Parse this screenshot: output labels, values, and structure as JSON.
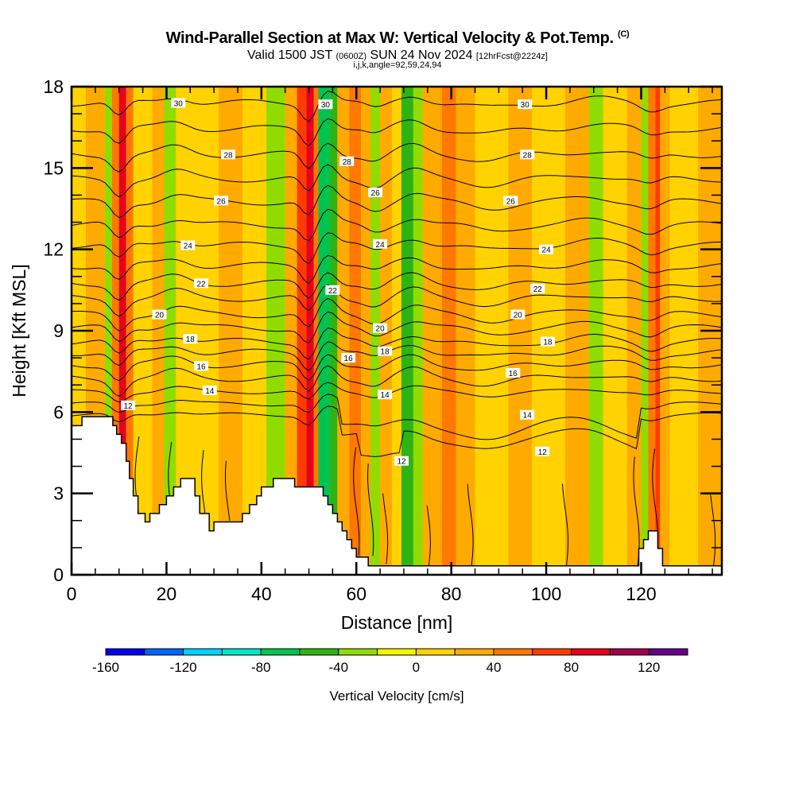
{
  "header": {
    "title": "Wind-Parallel Section at Max W: Vertical Velocity & Pot.Temp.",
    "title_mark": "(C)",
    "valid_prefix": "Valid 1500 JST",
    "valid_utc": "(0600Z)",
    "valid_date": "SUN 24 Nov 2024",
    "forecast": "[12hrFcst@2224z]",
    "indices": "i,j,k,angle=92,59,24,94"
  },
  "chart_data": {
    "type": "heatmap",
    "title": "Wind-Parallel Section at Max W: Vertical Velocity & Pot.Temp.",
    "xlabel": "Distance [nm]",
    "ylabel": "Height [Kft MSL]",
    "xlim": [
      0,
      137
    ],
    "ylim": [
      0,
      18
    ],
    "x_ticks": [
      0,
      20,
      40,
      60,
      80,
      100,
      120
    ],
    "x_tick_labels": [
      "0",
      "20",
      "40",
      "60",
      "80",
      "100",
      "120"
    ],
    "y_ticks": [
      0,
      3,
      6,
      9,
      12,
      15,
      18
    ],
    "y_tick_labels": [
      "0",
      "3",
      "6",
      "9",
      "12",
      "15",
      "18"
    ],
    "colorbar": {
      "label": "Vertical Velocity [cm/s]",
      "bounds": [
        -160,
        -140,
        -120,
        -100,
        -80,
        -60,
        -40,
        -20,
        0,
        20,
        40,
        60,
        80,
        100,
        120,
        140
      ],
      "tick_values": [
        -160,
        -120,
        -80,
        -40,
        0,
        40,
        80,
        120
      ],
      "tick_labels": [
        "-160",
        "-120",
        "-80",
        "-40",
        "0",
        "40",
        "80",
        "120"
      ],
      "colors": [
        "#0000f0",
        "#0064ff",
        "#00d2ff",
        "#00e6c3",
        "#00c350",
        "#2db414",
        "#91dc00",
        "#f5f500",
        "#ffd200",
        "#ffaa00",
        "#ff7800",
        "#ff3c00",
        "#e6001e",
        "#a0004b",
        "#640087"
      ]
    },
    "vertical_velocity_bands": [
      {
        "x": [
          0,
          3
        ],
        "w": 10
      },
      {
        "x": [
          3,
          7
        ],
        "w": 25
      },
      {
        "x": [
          7,
          8.5
        ],
        "w": -30
      },
      {
        "x": [
          8.5,
          10
        ],
        "w": 50
      },
      {
        "x": [
          10,
          11.5
        ],
        "w": 85
      },
      {
        "x": [
          11.5,
          13
        ],
        "w": 40
      },
      {
        "x": [
          13,
          17
        ],
        "w": 15
      },
      {
        "x": [
          17,
          19.5
        ],
        "w": 30
      },
      {
        "x": [
          19.5,
          22
        ],
        "w": -30
      },
      {
        "x": [
          22,
          26
        ],
        "w": 15
      },
      {
        "x": [
          26,
          31
        ],
        "w": 5
      },
      {
        "x": [
          31,
          36
        ],
        "w": 25
      },
      {
        "x": [
          36,
          41
        ],
        "w": 5
      },
      {
        "x": [
          41,
          45
        ],
        "w": -30
      },
      {
        "x": [
          45,
          47.5
        ],
        "w": 30
      },
      {
        "x": [
          47.5,
          49.5
        ],
        "w": 60
      },
      {
        "x": [
          49.5,
          51
        ],
        "w": 95
      },
      {
        "x": [
          51,
          52
        ],
        "w": 50
      },
      {
        "x": [
          52,
          54.5
        ],
        "w": -70
      },
      {
        "x": [
          54.5,
          56
        ],
        "w": -45
      },
      {
        "x": [
          56,
          58.5
        ],
        "w": 30
      },
      {
        "x": [
          58.5,
          61
        ],
        "w": 50
      },
      {
        "x": [
          61,
          63
        ],
        "w": 30
      },
      {
        "x": [
          63,
          65
        ],
        "w": -30
      },
      {
        "x": [
          65,
          67.5
        ],
        "w": 25
      },
      {
        "x": [
          67.5,
          69.5
        ],
        "w": 5
      },
      {
        "x": [
          69.5,
          72
        ],
        "w": -55
      },
      {
        "x": [
          72,
          74
        ],
        "w": -30
      },
      {
        "x": [
          74,
          78
        ],
        "w": 25
      },
      {
        "x": [
          78,
          81
        ],
        "w": 50
      },
      {
        "x": [
          81,
          85
        ],
        "w": 25
      },
      {
        "x": [
          85,
          92
        ],
        "w": 5
      },
      {
        "x": [
          92,
          97
        ],
        "w": 25
      },
      {
        "x": [
          97,
          104
        ],
        "w": 5
      },
      {
        "x": [
          104,
          109
        ],
        "w": 25
      },
      {
        "x": [
          109,
          112
        ],
        "w": -30
      },
      {
        "x": [
          112,
          117
        ],
        "w": 5
      },
      {
        "x": [
          117,
          120
        ],
        "w": 25
      },
      {
        "x": [
          120,
          121.5
        ],
        "w": -30
      },
      {
        "x": [
          121.5,
          123
        ],
        "w": 50
      },
      {
        "x": [
          123,
          124
        ],
        "w": 75
      },
      {
        "x": [
          124,
          126
        ],
        "w": 35
      },
      {
        "x": [
          126,
          132
        ],
        "w": 10
      },
      {
        "x": [
          132,
          137
        ],
        "w": 25
      }
    ],
    "terrain": [
      [
        0,
        5.5
      ],
      [
        2.2,
        5.5
      ],
      [
        2.2,
        5.83
      ],
      [
        8.7,
        5.83
      ],
      [
        8.7,
        5.5
      ],
      [
        9.5,
        5.5
      ],
      [
        9.5,
        5.18
      ],
      [
        10.5,
        5.18
      ],
      [
        10.5,
        4.85
      ],
      [
        11.5,
        4.85
      ],
      [
        11.5,
        4.19
      ],
      [
        12.2,
        4.19
      ],
      [
        12.2,
        3.55
      ],
      [
        13,
        3.55
      ],
      [
        13,
        2.91
      ],
      [
        14,
        2.91
      ],
      [
        14,
        2.26
      ],
      [
        15.5,
        2.26
      ],
      [
        15.5,
        1.95
      ],
      [
        16.5,
        1.95
      ],
      [
        16.5,
        2.26
      ],
      [
        18.5,
        2.26
      ],
      [
        18.5,
        2.59
      ],
      [
        20,
        2.59
      ],
      [
        20,
        2.91
      ],
      [
        21.5,
        2.91
      ],
      [
        21.5,
        3.24
      ],
      [
        23,
        3.24
      ],
      [
        23,
        3.55
      ],
      [
        26,
        3.55
      ],
      [
        26,
        2.91
      ],
      [
        27,
        2.91
      ],
      [
        27,
        2.26
      ],
      [
        29,
        2.26
      ],
      [
        29,
        1.62
      ],
      [
        30,
        1.62
      ],
      [
        30,
        1.95
      ],
      [
        36,
        1.95
      ],
      [
        36,
        2.26
      ],
      [
        37.5,
        2.26
      ],
      [
        37.5,
        2.59
      ],
      [
        39,
        2.59
      ],
      [
        39,
        2.91
      ],
      [
        40,
        2.91
      ],
      [
        40,
        3.24
      ],
      [
        42.5,
        3.24
      ],
      [
        42.5,
        3.55
      ],
      [
        47,
        3.55
      ],
      [
        47,
        3.24
      ],
      [
        53,
        3.24
      ],
      [
        53,
        2.91
      ],
      [
        54,
        2.91
      ],
      [
        54,
        2.59
      ],
      [
        55,
        2.59
      ],
      [
        55,
        2.26
      ],
      [
        56,
        2.26
      ],
      [
        56,
        1.95
      ],
      [
        57,
        1.95
      ],
      [
        57,
        1.62
      ],
      [
        58,
        1.62
      ],
      [
        58,
        1.3
      ],
      [
        59,
        1.3
      ],
      [
        59,
        0.97
      ],
      [
        60,
        0.97
      ],
      [
        60,
        0.65
      ],
      [
        62.5,
        0.65
      ],
      [
        62.5,
        0.33
      ],
      [
        71.5,
        0.33
      ],
      [
        71.5,
        0.33
      ],
      [
        119.5,
        0.33
      ],
      [
        119.5,
        0.97
      ],
      [
        120.5,
        0.97
      ],
      [
        120.5,
        1.3
      ],
      [
        121.5,
        1.3
      ],
      [
        121.5,
        1.62
      ],
      [
        123.5,
        1.62
      ],
      [
        123.5,
        0.97
      ],
      [
        124.5,
        0.97
      ],
      [
        124.5,
        0.33
      ],
      [
        137,
        0.33
      ],
      [
        137,
        0
      ],
      [
        0,
        0
      ]
    ],
    "theta_contours": {
      "levels": [
        12,
        13,
        14,
        15,
        16,
        17,
        18,
        19,
        20,
        21,
        22,
        23,
        24,
        25,
        26,
        27,
        28,
        29,
        30
      ],
      "labels": [
        {
          "text": "30",
          "x": 22.5,
          "y": 17.4
        },
        {
          "text": "30",
          "x": 53.5,
          "y": 17.35
        },
        {
          "text": "30",
          "x": 95.5,
          "y": 17.35
        },
        {
          "text": "28",
          "x": 33,
          "y": 15.5
        },
        {
          "text": "28",
          "x": 58,
          "y": 15.25
        },
        {
          "text": "28",
          "x": 96,
          "y": 15.5
        },
        {
          "text": "26",
          "x": 31.5,
          "y": 13.8
        },
        {
          "text": "26",
          "x": 64,
          "y": 14.1
        },
        {
          "text": "26",
          "x": 92.5,
          "y": 13.8
        },
        {
          "text": "24",
          "x": 24.5,
          "y": 12.15
        },
        {
          "text": "24",
          "x": 65,
          "y": 12.2
        },
        {
          "text": "24",
          "x": 100,
          "y": 12.0
        },
        {
          "text": "22",
          "x": 27.3,
          "y": 10.75
        },
        {
          "text": "22",
          "x": 55,
          "y": 10.5
        },
        {
          "text": "22",
          "x": 98.2,
          "y": 10.55
        },
        {
          "text": "20",
          "x": 18.5,
          "y": 9.6
        },
        {
          "text": "20",
          "x": 65,
          "y": 9.1
        },
        {
          "text": "20",
          "x": 94,
          "y": 9.6
        },
        {
          "text": "18",
          "x": 25,
          "y": 8.7
        },
        {
          "text": "18",
          "x": 66,
          "y": 8.25
        },
        {
          "text": "18",
          "x": 100.3,
          "y": 8.6
        },
        {
          "text": "16",
          "x": 27.3,
          "y": 7.7
        },
        {
          "text": "16",
          "x": 58.3,
          "y": 8.0
        },
        {
          "text": "16",
          "x": 93,
          "y": 7.45
        },
        {
          "text": "14",
          "x": 29.1,
          "y": 6.8
        },
        {
          "text": "14",
          "x": 66,
          "y": 6.65
        },
        {
          "text": "14",
          "x": 96,
          "y": 5.9
        },
        {
          "text": "12",
          "x": 11.9,
          "y": 6.25
        },
        {
          "text": "12",
          "x": 69.5,
          "y": 4.2
        },
        {
          "text": "12",
          "x": 99.2,
          "y": 4.55
        }
      ]
    }
  }
}
